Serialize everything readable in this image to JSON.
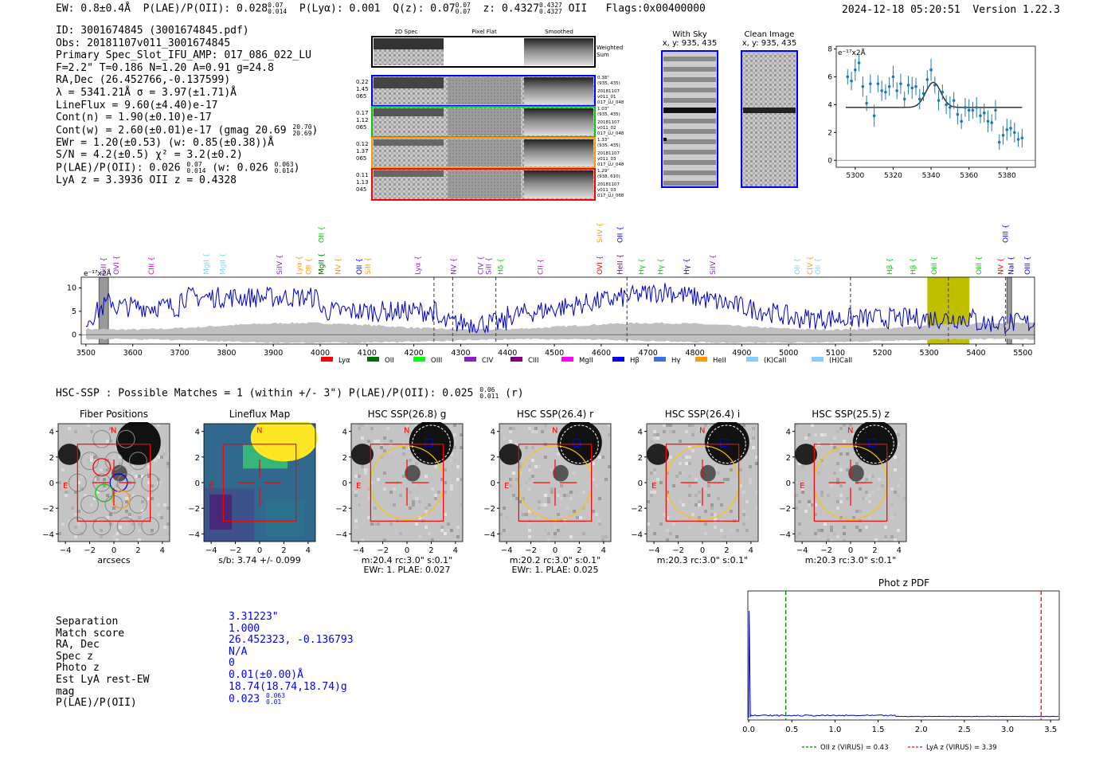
{
  "header": {
    "ew_label": "EW: 0.8±0.4Å",
    "plae_label": "P(LAE)/P(OII): 0.028",
    "plae_hi": "0.07",
    "plae_lo": "0.014",
    "plya_label": "P(Lyα): 0.001",
    "q_label": "Q(z): 0.07",
    "q_hi": "0.07",
    "q_lo": "0.07",
    "z_label": "z: 0.4327",
    "z_hi": "0.4327",
    "z_lo": "0.4327",
    "z_line": "OII",
    "flags": "Flags:0x00400000",
    "timestamp": "2024-12-18 05:20:51",
    "version": "Version 1.22.3"
  },
  "info": {
    "id": "ID: 3001674845 (3001674845.pdf)",
    "obs": "Obs: 20181107v011_3001674845",
    "primary": "Primary Spec_Slot_IFU_AMP: 017_086_022_LU",
    "fit": "F=2.2\"  T=0.186  N=1.20  A=0.91  g=24.8",
    "radec": "RA,Dec (26.452766,-0.137599)",
    "lambda": "λ = 5341.21Å  σ = 3.97(±1.71)Å",
    "lineflux": "LineFlux = 9.60(±4.40)e-17",
    "contn": "Cont(n) = 1.90(±0.10)e-17",
    "contw": "Cont(w) = 2.60(±0.01)e-17 (gmag 20.69",
    "contw_hi": "20.70",
    "contw_lo": "20.69",
    "contw_end": ")",
    "ewr": "EWr = 1.20(±0.53) (w: 0.85(±0.38))Å",
    "sn": "S/N = 4.2(±0.5)  χ² = 3.2(±0.2)",
    "plae": "P(LAE)/P(OII): 0.026",
    "plae_hi": "0.07",
    "plae_lo": "0.014",
    "plae_w": "(w: 0.026",
    "plae_w_hi": "0.063",
    "plae_w_lo": "0.014",
    "plae_w_end": ")",
    "lya_z": "LyA z = 3.3936   OII z = 0.4328"
  },
  "cutouts": {
    "col_2d": "2D Spec",
    "col_flat": "Pixel Flat",
    "col_smooth": "Smoothed",
    "weighted": "Weighted Sum",
    "rows": [
      {
        "left": [
          "0.22",
          "1.45",
          "065"
        ],
        "right": [
          "0.38\"",
          "(935, 435)",
          "20181107",
          "v011_01",
          "017_LU_048"
        ],
        "color": "#0000ff"
      },
      {
        "left": [
          "0.17",
          "1.12",
          "065"
        ],
        "right": [
          "1.03\"",
          "(935, 435)",
          "20181107",
          "v011_02",
          "017_LU_048"
        ],
        "color": "#00cc00"
      },
      {
        "left": [
          "0.12",
          "1.37",
          "065"
        ],
        "right": [
          "1.33\"",
          "(935, 435)",
          "20181107",
          "v011_03",
          "017_LU_048"
        ],
        "color": "#ff9900"
      },
      {
        "left": [
          "0.11",
          "1.13",
          "045"
        ],
        "right": [
          "1.29\"",
          "(938, 610)",
          "20181107",
          "v011_03",
          "017_LU_068"
        ],
        "color": "#ff0000"
      }
    ],
    "with_sky": "With Sky",
    "with_sky_xy": "x, y: 935, 435",
    "clean": "Clean Image",
    "clean_xy": "x, y: 935, 435"
  },
  "zoom_chart": {
    "type": "scatter",
    "unit_label": "e⁻¹⁷x2Å",
    "xlim": [
      5290,
      5395
    ],
    "ylim": [
      -0.5,
      8.2
    ],
    "xticks": [
      "5300",
      "5320",
      "5340",
      "5360",
      "5380"
    ],
    "yticks": [
      "0",
      "2",
      "4",
      "6",
      "8"
    ],
    "x": [
      5296,
      5298,
      5300,
      5302,
      5304,
      5306,
      5308,
      5310,
      5312,
      5314,
      5316,
      5318,
      5320,
      5322,
      5324,
      5326,
      5328,
      5330,
      5332,
      5334,
      5336,
      5338,
      5340,
      5342,
      5344,
      5346,
      5348,
      5350,
      5352,
      5354,
      5356,
      5358,
      5360,
      5362,
      5364,
      5366,
      5368,
      5370,
      5372,
      5374,
      5376,
      5378,
      5380,
      5382,
      5384,
      5386,
      5388
    ],
    "y": [
      6.0,
      5.7,
      6.5,
      7.0,
      5.3,
      4.1,
      5.5,
      3.2,
      5.5,
      5.0,
      4.9,
      5.3,
      6.0,
      5.0,
      5.5,
      4.4,
      5.4,
      5.2,
      5.3,
      4.4,
      4.8,
      5.8,
      6.5,
      5.4,
      4.3,
      4.9,
      4.0,
      3.8,
      4.3,
      3.3,
      2.8,
      3.8,
      3.6,
      3.6,
      3.8,
      3.2,
      3.4,
      2.8,
      2.7,
      3.6,
      1.3,
      1.8,
      2.2,
      2.3,
      2.0,
      1.5,
      1.6
    ],
    "fit_base": 3.8,
    "fit_peak": 1.8,
    "fit_center": 5341.2,
    "fit_sigma": 3.97
  },
  "spectrum": {
    "type": "line",
    "unit_label": "e⁻¹⁷x2Å",
    "xlim": [
      3490,
      5525
    ],
    "ylim": [
      -2,
      12.3
    ],
    "xticks": [
      "3500",
      "3600",
      "3700",
      "3800",
      "3900",
      "4000",
      "4100",
      "4200",
      "4300",
      "4400",
      "4500",
      "4600",
      "4700",
      "4800",
      "4900",
      "5000",
      "5100",
      "5200",
      "5300",
      "5400",
      "5500"
    ],
    "yticks": [
      "0",
      "5",
      "10"
    ],
    "highlight_x": [
      5296,
      5386
    ],
    "dashed_x": [
      4243,
      4283,
      4375,
      4655,
      5132,
      5341,
      5463
    ],
    "labels": [
      {
        "t": "SiII",
        "x": 3538,
        "c": "#8c1ec8"
      },
      {
        "t": "OVI",
        "x": 3565,
        "c": "#8c1ec8"
      },
      {
        "t": "CIII",
        "x": 3640,
        "c": "#cc00cc"
      },
      {
        "t": "MgII",
        "x": 3757,
        "c": "#87cefa"
      },
      {
        "t": "MgII",
        "x": 3792,
        "c": "#87cefa"
      },
      {
        "t": "SiIV",
        "x": 3913,
        "c": "#8c1ec8"
      },
      {
        "t": "Lyα",
        "x": 3955,
        "c": "#ff9900"
      },
      {
        "t": "OII",
        "x": 3975,
        "c": "#ff9900"
      },
      {
        "t": "MgII",
        "x": 4003,
        "c": "#006400"
      },
      {
        "t": "NV",
        "x": 4038,
        "c": "#ff9900"
      },
      {
        "t": "OII",
        "x": 4083,
        "c": "#0000ff"
      },
      {
        "t": "SiII",
        "x": 4102,
        "c": "#ff9900"
      },
      {
        "t": "Lyα",
        "x": 4208,
        "c": "#8c1ec8"
      },
      {
        "t": "NV",
        "x": 4285,
        "c": "#8c1ec8"
      },
      {
        "t": "CIV",
        "x": 4343,
        "c": "#8c1ec8"
      },
      {
        "t": "SiII",
        "x": 4360,
        "c": "#8c1ec8"
      },
      {
        "t": "Hδ",
        "x": 4385,
        "c": "#00cc00"
      },
      {
        "t": "CII",
        "x": 4470,
        "c": "#cc00cc"
      },
      {
        "t": "OVI",
        "x": 4597,
        "c": "#ff0000"
      },
      {
        "t": "HeII",
        "x": 4640,
        "c": "#800080"
      },
      {
        "t": "Hγ",
        "x": 4686,
        "c": "#00cc00"
      },
      {
        "t": "Hγ",
        "x": 4727,
        "c": "#00cc00"
      },
      {
        "t": "Hγ",
        "x": 4782,
        "c": "#0000ff"
      },
      {
        "t": "SiIV",
        "x": 4838,
        "c": "#8c1ec8"
      },
      {
        "t": "OII",
        "x": 5018,
        "c": "#87cefa"
      },
      {
        "t": "CIV",
        "x": 5046,
        "c": "#ff9900"
      },
      {
        "t": "OII",
        "x": 5063,
        "c": "#87cefa"
      },
      {
        "t": "Hβ",
        "x": 5216,
        "c": "#00cc00"
      },
      {
        "t": "Hβ",
        "x": 5266,
        "c": "#00cc00"
      },
      {
        "t": "OIII",
        "x": 5311,
        "c": "#00cc00"
      },
      {
        "t": "OIII",
        "x": 5406,
        "c": "#00cc00"
      },
      {
        "t": "NV",
        "x": 5453,
        "c": "#ff0000"
      },
      {
        "t": "NaI",
        "x": 5475,
        "c": "#0000ff"
      },
      {
        "t": "OIII",
        "x": 5510,
        "c": "#0000ff"
      }
    ],
    "top_labels": [
      {
        "t": "OII",
        "x": 4003,
        "c": "#00cc00"
      },
      {
        "t": "SiIV",
        "x": 4597,
        "c": "#ff9900"
      },
      {
        "t": "OII",
        "x": 4640,
        "c": "#0000ff"
      },
      {
        "t": "OIII",
        "x": 5463,
        "c": "#0000ff"
      }
    ],
    "legend": [
      {
        "t": "Lyα",
        "c": "#ff0000"
      },
      {
        "t": "OII",
        "c": "#007000"
      },
      {
        "t": "OIII",
        "c": "#00ff00"
      },
      {
        "t": "CIV",
        "c": "#8c1ec8"
      },
      {
        "t": "CIII",
        "c": "#800080"
      },
      {
        "t": "MgII",
        "c": "#ff00ff"
      },
      {
        "t": "Hβ",
        "c": "#0000ff"
      },
      {
        "t": "Hγ",
        "c": "#3c6ee6"
      },
      {
        "t": "HeII",
        "c": "#ff9900"
      },
      {
        "t": "(K)CaII",
        "c": "#87cefa"
      },
      {
        "t": "(H)CaII",
        "c": "#87cefa"
      }
    ]
  },
  "hsc": {
    "headline": "HSC-SSP : Possible Matches = 1 (within +/- 3\")  P(LAE)/P(OII): 0.025",
    "headline_hi": "0.06",
    "headline_lo": "0.011",
    "headline_end": "(r)",
    "axis_ticks": [
      "4",
      "2",
      "0",
      "−2",
      "−4"
    ],
    "x_ticks": [
      "−4",
      "−2",
      "0",
      "2",
      "4"
    ],
    "panels": [
      {
        "title": "Fiber Positions",
        "sub1": "arcsecs",
        "sub2": ""
      },
      {
        "title": "Lineflux Map",
        "sub1": "s/b: 3.74 +/- 0.099",
        "sub2": ""
      },
      {
        "title": "HSC SSP(26.8) g",
        "sub1": "m:20.4 rc:3.0\"  s:0.1\"",
        "sub2": "EWr: 1. PLAE: 0.027"
      },
      {
        "title": "HSC SSP(26.4) r",
        "sub1": "m:20.2 rc:3.0\"  s:0.1\"",
        "sub2": "EWr: 1. PLAE: 0.025"
      },
      {
        "title": "HSC SSP(26.4) i",
        "sub1": "m:20.3 rc:3.0\"  s:0.1\"",
        "sub2": ""
      },
      {
        "title": "HSC SSP(25.5) z",
        "sub1": "m:20.3 rc:3.0\"  s:0.1\"",
        "sub2": ""
      }
    ],
    "n_label": "N",
    "e_label": "E"
  },
  "candidate": {
    "labels": [
      "Separation",
      "Match score",
      "RA, Dec",
      "Spec z",
      "Photo z",
      "Est LyA rest-EW",
      "mag",
      "P(LAE)/P(OII)"
    ],
    "values": [
      "3.31223\"",
      "1.000",
      "26.452323, -0.136793",
      "N/A",
      "0",
      "0.01(±0.00)Å",
      "18.74(18.74,18.74)g",
      "0.023"
    ],
    "plae_hi": "0.063",
    "plae_lo": "0.01"
  },
  "photz": {
    "type": "line",
    "title": "Phot z PDF",
    "xlim": [
      0,
      3.6
    ],
    "xticks": [
      "0.0",
      "0.5",
      "1.0",
      "1.5",
      "2.0",
      "2.5",
      "3.0",
      "3.5"
    ],
    "oii_z": 0.43,
    "lya_z": 3.39,
    "legend_oii": "OII z (VIRUS) = 0.43",
    "legend_lya": "LyA z (VIRUS) = 3.39"
  }
}
